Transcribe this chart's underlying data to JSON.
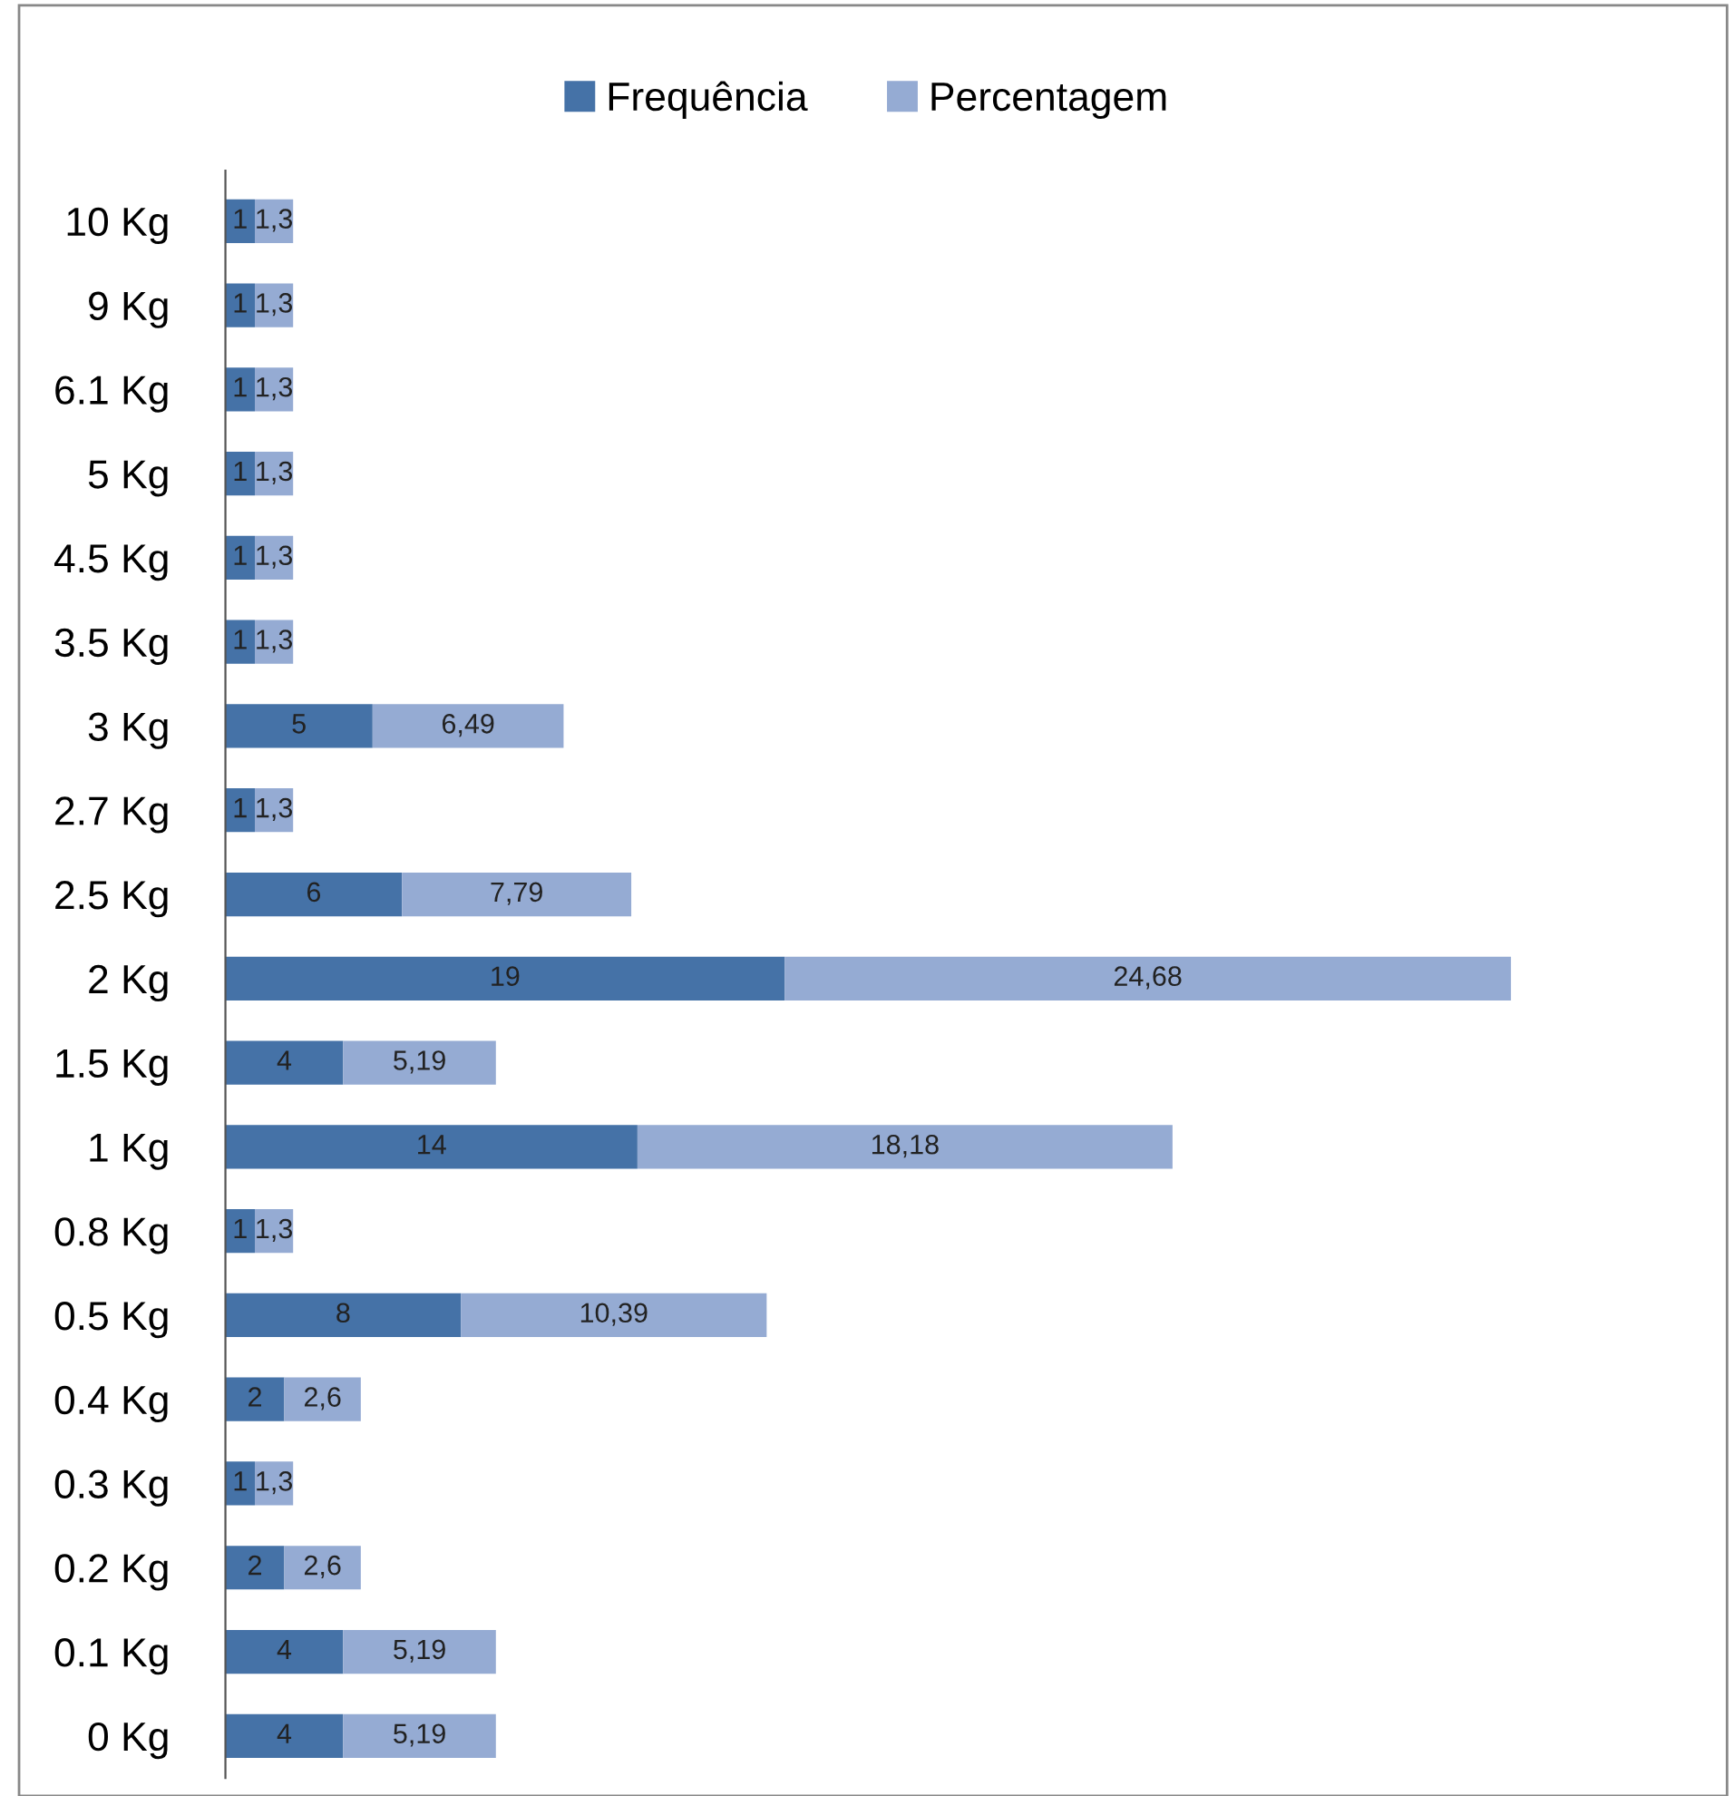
{
  "chart_data": {
    "type": "bar",
    "orientation": "horizontal",
    "stacked": true,
    "legend": "top",
    "grid": false,
    "tick_labels": "y",
    "categories": [
      "10 Kg",
      "9 Kg",
      "6.1 Kg",
      "5 Kg",
      "4.5 Kg",
      "3.5 Kg",
      "3 Kg",
      "2.7 Kg",
      "2.5 Kg",
      "2 Kg",
      "1.5 Kg",
      "1 Kg",
      "0.8 Kg",
      "0.5 Kg",
      "0.4 Kg",
      "0.3 Kg",
      "0.2 Kg",
      "0.1 Kg",
      "0 Kg"
    ],
    "series": [
      {
        "name": "Frequência",
        "color": "#4572a7",
        "values": [
          1,
          1,
          1,
          1,
          1,
          1,
          5,
          1,
          6,
          19,
          4,
          14,
          1,
          8,
          2,
          1,
          2,
          4,
          4
        ],
        "value_labels": [
          "1",
          "1",
          "1",
          "1",
          "1",
          "1",
          "5",
          "1",
          "6",
          "19",
          "4",
          "14",
          "1",
          "8",
          "2",
          "1",
          "2",
          "4",
          "4"
        ]
      },
      {
        "name": "Percentagem",
        "color": "#95abd3",
        "values": [
          1.3,
          1.3,
          1.3,
          1.3,
          1.3,
          1.3,
          6.49,
          1.3,
          7.79,
          24.68,
          5.19,
          18.18,
          1.3,
          10.39,
          2.6,
          1.3,
          2.6,
          5.19,
          5.19
        ],
        "value_labels": [
          "1,3",
          "1,3",
          "1,3",
          "1,3",
          "1,3",
          "1,3",
          "6,49",
          "1,3",
          "7,79",
          "24,68",
          "5,19",
          "18,18",
          "1,3",
          "10,39",
          "2,6",
          "1,3",
          "2,6",
          "5,19",
          "5,19"
        ]
      }
    ]
  }
}
